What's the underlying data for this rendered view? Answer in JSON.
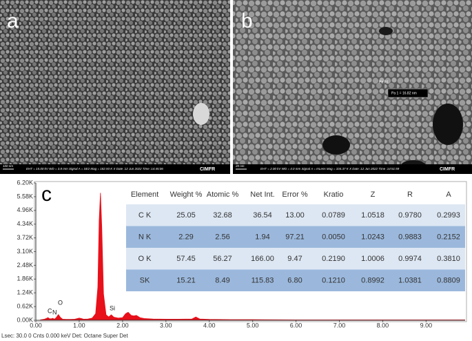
{
  "panels": [
    {
      "label": "a",
      "scale_bar": "100 nm",
      "info": "EHT = 15.00 kV    WD = 3.8 mm    Signal A = SE2          Mag = 182.93 K X  Date :12 Jun 2022  Time :14:45:06",
      "logo": "CIMFR"
    },
    {
      "label": "b",
      "scale_bar": "20 nm",
      "info": "EHT = 2.00 kV    WD = 4.0 mm    Signal A = InLens       Mag = 334.37 K X  Date :12 Jun 2022  Time :14:51:59",
      "logo": "CIMFR",
      "measurement": "Pa 1 = 16.82 nm",
      "marker": "Pa R1"
    }
  ],
  "chart_data": {
    "type": "area",
    "label": "c",
    "color": "#e8101a",
    "x": [
      0.1,
      0.2,
      0.25,
      0.28,
      0.32,
      0.36,
      0.39,
      0.43,
      0.47,
      0.52,
      0.57,
      0.62,
      0.7,
      0.8,
      0.9,
      1.0,
      1.05,
      1.1,
      1.2,
      1.3,
      1.38,
      1.43,
      1.46,
      1.49,
      1.52,
      1.56,
      1.62,
      1.68,
      1.74,
      1.8,
      1.9,
      2.0,
      2.07,
      2.13,
      2.2,
      2.26,
      2.32,
      2.4,
      2.5,
      2.7,
      3.0,
      3.3,
      3.6,
      3.69,
      3.78,
      4.0,
      4.5,
      5,
      6,
      7,
      8,
      9,
      9.9
    ],
    "values": [
      0.02,
      0.05,
      0.09,
      0.12,
      0.07,
      0.07,
      0.09,
      0.05,
      0.12,
      0.26,
      0.12,
      0.05,
      0.04,
      0.04,
      0.05,
      0.1,
      0.08,
      0.05,
      0.06,
      0.1,
      0.3,
      1.5,
      4.5,
      5.75,
      4.2,
      1.2,
      0.25,
      0.15,
      0.25,
      0.14,
      0.1,
      0.12,
      0.3,
      0.36,
      0.22,
      0.2,
      0.22,
      0.12,
      0.08,
      0.06,
      0.05,
      0.05,
      0.06,
      0.15,
      0.06,
      0.04,
      0.03,
      0.03,
      0.02,
      0.02,
      0.02,
      0.02,
      0.02
    ],
    "xlim": [
      0,
      9.9
    ],
    "ylim": [
      0,
      6.2
    ],
    "xticks": [
      {
        "value": 0,
        "label": "0.00"
      },
      {
        "value": 1,
        "label": "1.00"
      },
      {
        "value": 2,
        "label": "2.00"
      },
      {
        "value": 3,
        "label": "3.00"
      },
      {
        "value": 4,
        "label": "4.00"
      },
      {
        "value": 5,
        "label": "5.00"
      },
      {
        "value": 6,
        "label": "6.00"
      },
      {
        "value": 7,
        "label": "7.00"
      },
      {
        "value": 8,
        "label": "8.00"
      },
      {
        "value": 9,
        "label": "9.00"
      }
    ],
    "yticks": [
      {
        "value": 0,
        "label": "0.00K"
      },
      {
        "value": 0.62,
        "label": "0.62K"
      },
      {
        "value": 1.24,
        "label": "1.24K"
      },
      {
        "value": 1.86,
        "label": "1.86K"
      },
      {
        "value": 2.48,
        "label": "2.48K"
      },
      {
        "value": 3.1,
        "label": "3.10K"
      },
      {
        "value": 3.72,
        "label": "3.72K"
      },
      {
        "value": 4.34,
        "label": "4.34K"
      },
      {
        "value": 4.96,
        "label": "4.96K"
      },
      {
        "value": 5.58,
        "label": "5.58K"
      },
      {
        "value": 6.2,
        "label": "6.20K"
      }
    ],
    "annotations": [
      "C",
      "N",
      "O",
      "Si"
    ],
    "table": {
      "columns": [
        "Element",
        "Weight %",
        "Atomic %",
        "Net Int.",
        "Error %",
        "Kratio",
        "Z",
        "R",
        "A"
      ],
      "rows": [
        [
          "C K",
          "25.05",
          "32.68",
          "36.54",
          "13.00",
          "0.0789",
          "1.0518",
          "0.9780",
          "0.2993"
        ],
        [
          "N K",
          "2.29",
          "2.56",
          "1.94",
          "97.21",
          "0.0050",
          "1.0243",
          "0.9883",
          "0.2152"
        ],
        [
          "O K",
          "57.45",
          "56.27",
          "166.00",
          "9.47",
          "0.2190",
          "1.0006",
          "0.9974",
          "0.3810"
        ],
        [
          "SK",
          "15.21",
          "8.49",
          "115.83",
          "6.80",
          "0.1210",
          "0.8992",
          "1.0381",
          "0.8809"
        ]
      ]
    },
    "footer": "Lsec: 30.0  0 Cnts  0.000 keV  Det: Octane Super Det"
  }
}
